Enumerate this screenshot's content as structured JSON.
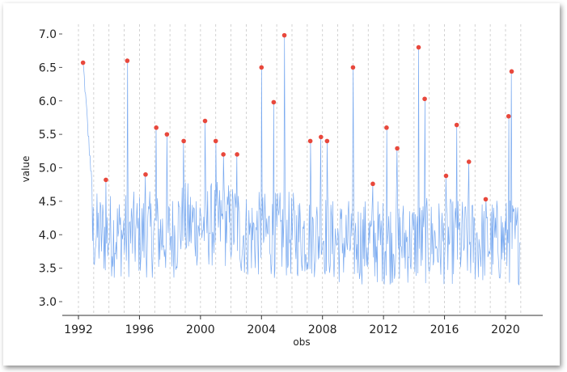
{
  "chart_data": {
    "type": "line",
    "title": "",
    "xlabel": "obs",
    "ylabel": "value",
    "xlim": [
      1991.2,
      2022.6
    ],
    "ylim": [
      2.8,
      7.2
    ],
    "x_ticks": [
      1992,
      1996,
      2000,
      2004,
      2008,
      2012,
      2016,
      2020
    ],
    "x_tick_labels": [
      "1992",
      "1996",
      "2000",
      "2004",
      "2008",
      "2012",
      "2016",
      "2020"
    ],
    "y_ticks": [
      3.0,
      3.5,
      4.0,
      4.5,
      5.0,
      5.5,
      6.0,
      6.5,
      7.0
    ],
    "y_tick_labels": [
      "3.0",
      "3.5",
      "4.0",
      "4.5",
      "5.0",
      "5.5",
      "6.0",
      "6.5",
      "7.0"
    ],
    "grid": "vertical dashed",
    "line_color": "#7aaaf0",
    "marker_color": "#e8483c",
    "series": [
      {
        "values_shape": "noisy monthly series fluctuating mostly between 3.3 and 4.8",
        "start": 1992.3,
        "end": 2021.0
      }
    ],
    "highlighted_points": [
      {
        "x": 1992.3,
        "y": 6.57
      },
      {
        "x": 1993.8,
        "y": 4.82
      },
      {
        "x": 1995.2,
        "y": 6.6
      },
      {
        "x": 1996.4,
        "y": 4.9
      },
      {
        "x": 1997.1,
        "y": 5.6
      },
      {
        "x": 1997.8,
        "y": 5.5
      },
      {
        "x": 1998.9,
        "y": 5.4
      },
      {
        "x": 2000.3,
        "y": 5.7
      },
      {
        "x": 2001.0,
        "y": 5.4
      },
      {
        "x": 2001.5,
        "y": 5.2
      },
      {
        "x": 2002.4,
        "y": 5.2
      },
      {
        "x": 2004.0,
        "y": 6.5
      },
      {
        "x": 2004.8,
        "y": 5.98
      },
      {
        "x": 2005.5,
        "y": 6.98
      },
      {
        "x": 2007.2,
        "y": 5.4
      },
      {
        "x": 2007.9,
        "y": 5.46
      },
      {
        "x": 2008.3,
        "y": 5.4
      },
      {
        "x": 2010.0,
        "y": 6.5
      },
      {
        "x": 2011.3,
        "y": 4.76
      },
      {
        "x": 2012.2,
        "y": 5.6
      },
      {
        "x": 2012.9,
        "y": 5.29
      },
      {
        "x": 2014.3,
        "y": 6.8
      },
      {
        "x": 2014.7,
        "y": 6.03
      },
      {
        "x": 2016.1,
        "y": 4.88
      },
      {
        "x": 2016.8,
        "y": 5.64
      },
      {
        "x": 2017.6,
        "y": 5.09
      },
      {
        "x": 2018.7,
        "y": 4.53
      },
      {
        "x": 2020.2,
        "y": 5.77
      },
      {
        "x": 2020.4,
        "y": 6.44
      }
    ]
  }
}
